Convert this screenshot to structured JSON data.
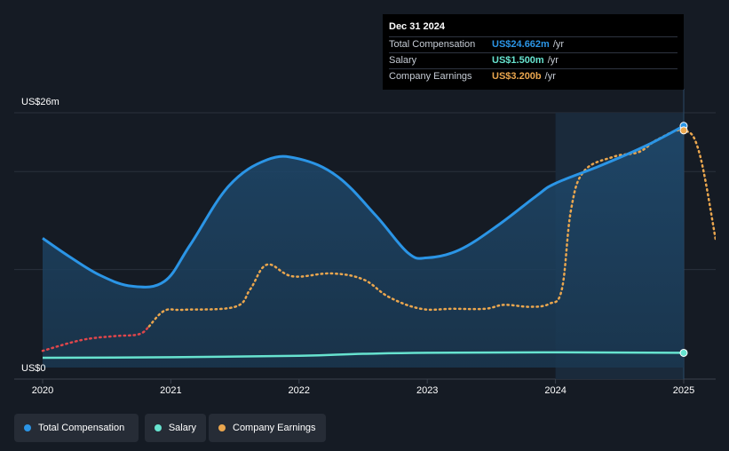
{
  "chart_data": {
    "type": "line",
    "x_ticks": [
      "2020",
      "2021",
      "2022",
      "2023",
      "2024",
      "2025"
    ],
    "y_labels": {
      "top": "US$26m",
      "bottom": "US$0"
    },
    "ylim": [
      0,
      26
    ],
    "x_range": [
      2020.0,
      2025.25
    ],
    "highlight_from": 2024.0,
    "grid": true,
    "series": [
      {
        "name": "Total Compensation",
        "color": "#2b95e6",
        "style": "solid",
        "filled": true,
        "points": [
          [
            2020.0,
            13.2
          ],
          [
            2020.2,
            11.4
          ],
          [
            2020.45,
            9.4
          ],
          [
            2020.7,
            8.3
          ],
          [
            2020.95,
            8.8
          ],
          [
            2021.15,
            12.5
          ],
          [
            2021.45,
            18.5
          ],
          [
            2021.75,
            21.2
          ],
          [
            2022.0,
            21.3
          ],
          [
            2022.3,
            19.5
          ],
          [
            2022.6,
            15.5
          ],
          [
            2022.85,
            11.7
          ],
          [
            2023.0,
            11.2
          ],
          [
            2023.25,
            12.0
          ],
          [
            2023.55,
            14.5
          ],
          [
            2023.85,
            17.5
          ],
          [
            2024.0,
            18.8
          ],
          [
            2024.35,
            20.6
          ],
          [
            2024.7,
            22.6
          ],
          [
            2025.0,
            24.662
          ]
        ]
      },
      {
        "name": "Salary",
        "color": "#67e3cf",
        "style": "solid",
        "filled": false,
        "points": [
          [
            2020.0,
            1.0
          ],
          [
            2021.0,
            1.05
          ],
          [
            2022.0,
            1.2
          ],
          [
            2022.5,
            1.4
          ],
          [
            2023.0,
            1.5
          ],
          [
            2024.0,
            1.55
          ],
          [
            2025.0,
            1.5
          ]
        ]
      },
      {
        "name": "Company Earnings",
        "color": "#eaa64e",
        "style": "dotted",
        "filled": false,
        "negative_color": "#e0464b",
        "points": [
          [
            2020.0,
            1.7
          ],
          [
            2020.3,
            2.8
          ],
          [
            2020.55,
            3.2
          ],
          [
            2020.75,
            3.4
          ],
          [
            2020.83,
            4.2
          ],
          [
            2020.95,
            5.8
          ],
          [
            2021.1,
            5.9
          ],
          [
            2021.5,
            6.2
          ],
          [
            2021.62,
            8.0
          ],
          [
            2021.75,
            10.5
          ],
          [
            2021.95,
            9.3
          ],
          [
            2022.25,
            9.6
          ],
          [
            2022.5,
            9.0
          ],
          [
            2022.7,
            7.2
          ],
          [
            2022.95,
            6.0
          ],
          [
            2023.2,
            6.0
          ],
          [
            2023.45,
            6.0
          ],
          [
            2023.6,
            6.4
          ],
          [
            2023.8,
            6.2
          ],
          [
            2023.95,
            6.5
          ],
          [
            2024.05,
            8.0
          ],
          [
            2024.12,
            16.0
          ],
          [
            2024.22,
            20.0
          ],
          [
            2024.45,
            21.5
          ],
          [
            2024.65,
            22.0
          ],
          [
            2024.8,
            23.3
          ],
          [
            2025.0,
            24.2
          ],
          [
            2025.12,
            22.0
          ],
          [
            2025.25,
            13.0
          ]
        ]
      }
    ]
  },
  "tooltip": {
    "date": "Dec 31 2024",
    "rows": [
      {
        "label": "Total Compensation",
        "value": "US$24.662m",
        "unit": "/yr",
        "color": "#2b95e6"
      },
      {
        "label": "Salary",
        "value": "US$1.500m",
        "unit": "/yr",
        "color": "#67e3cf"
      },
      {
        "label": "Company Earnings",
        "value": "US$3.200b",
        "unit": "/yr",
        "color": "#eaa64e"
      }
    ]
  },
  "legend": [
    {
      "label": "Total Compensation",
      "color": "#2b95e6"
    },
    {
      "label": "Salary",
      "color": "#67e3cf"
    },
    {
      "label": "Company Earnings",
      "color": "#eaa64e"
    }
  ]
}
